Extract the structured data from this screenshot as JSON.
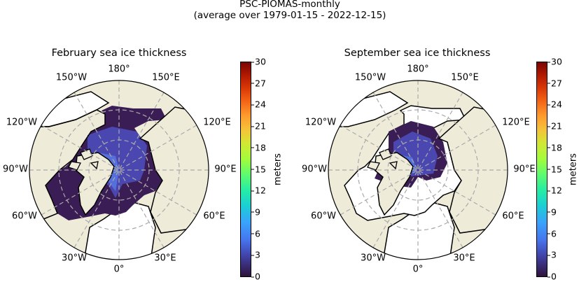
{
  "figure": {
    "title_line1": "PSC-PIOMAS-monthly",
    "title_line2": "(average over 1979-01-15 - 2022-12-15)"
  },
  "panels": [
    {
      "title": "February sea ice thickness"
    },
    {
      "title": "September sea ice thickness"
    }
  ],
  "graticule_labels": {
    "top": "180°",
    "nw1": "150°W",
    "ne1": "150°E",
    "nw2": "120°W",
    "ne2": "120°E",
    "w": "90°W",
    "e": "90°E",
    "sw2": "60°W",
    "se2": "60°E",
    "sw1": "30°W",
    "se1": "30°E",
    "bottom": "0°"
  },
  "colorbar": {
    "label": "meters",
    "ticks": [
      "0",
      "3",
      "6",
      "9",
      "12",
      "15",
      "18",
      "21",
      "24",
      "27",
      "30"
    ],
    "range": [
      0,
      30
    ],
    "colormap": "turbo"
  },
  "colors": {
    "land": "#efebd9",
    "ocean": "#ffffff",
    "ice_thin": "#3a1d55",
    "ice_mid": "#4a48b0",
    "ice_thick": "#5066d8"
  }
}
